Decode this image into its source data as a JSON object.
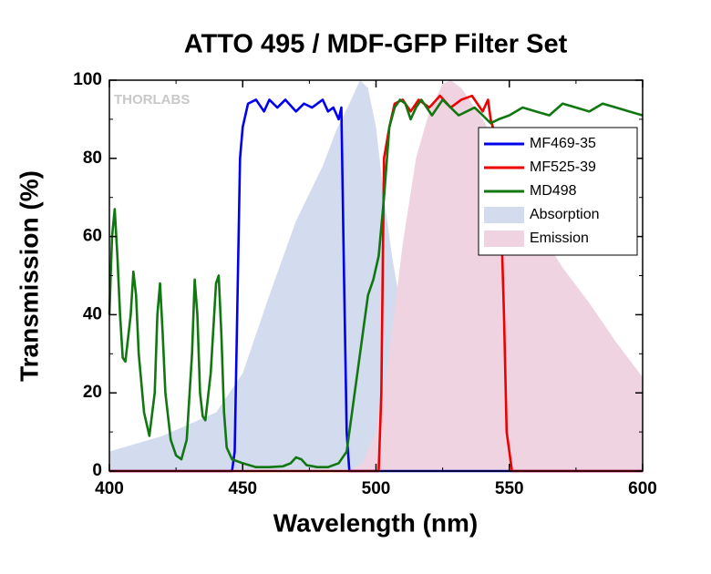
{
  "chart_data": {
    "type": "line",
    "title": "ATTO 495 / MDF-GFP Filter Set",
    "xlabel": "Wavelength (nm)",
    "ylabel": "Transmission (%)",
    "watermark": "THORLABS",
    "xlim": [
      400,
      600
    ],
    "ylim": [
      0,
      100
    ],
    "xticks": [
      400,
      450,
      500,
      550,
      600
    ],
    "yticks": [
      0,
      20,
      40,
      60,
      80,
      100
    ],
    "legend": "upper right",
    "series": [
      {
        "name": "MF469-35",
        "color": "#0000ee",
        "kind": "line",
        "x": [
          400,
          446,
          447,
          449,
          450,
          452,
          455,
          458,
          460,
          463,
          466,
          470,
          473,
          476,
          480,
          482,
          484,
          486,
          487,
          488,
          489,
          490,
          600
        ],
        "values": [
          0,
          0,
          5,
          80,
          88,
          94,
          95,
          92,
          95,
          93,
          95,
          92,
          94,
          93,
          95,
          92,
          93,
          90,
          93,
          50,
          10,
          0,
          0
        ]
      },
      {
        "name": "MF525-39",
        "color": "#ee0000",
        "kind": "line",
        "x": [
          400,
          501,
          502,
          503,
          505,
          507,
          510,
          513,
          516,
          520,
          524,
          528,
          532,
          536,
          540,
          542,
          543,
          545,
          546,
          547,
          548,
          549,
          551,
          600
        ],
        "values": [
          0,
          0,
          20,
          80,
          88,
          94,
          95,
          92,
          95,
          93,
          96,
          93,
          95,
          96,
          92,
          95,
          90,
          85,
          75,
          63,
          40,
          10,
          0,
          0
        ]
      },
      {
        "name": "MD498",
        "color": "#117711",
        "kind": "line",
        "x": [
          400,
          401,
          402,
          403,
          404,
          405,
          406,
          408,
          409,
          410,
          411,
          413,
          415,
          417,
          418,
          419,
          420,
          421,
          423,
          425,
          427,
          429,
          431,
          432,
          433,
          434,
          435,
          436,
          438,
          440,
          441,
          442,
          443,
          444,
          446,
          450,
          455,
          460,
          465,
          468,
          470,
          472,
          474,
          478,
          482,
          486,
          489,
          491,
          493,
          495,
          497,
          499,
          501,
          503,
          505,
          507,
          509,
          511,
          513,
          515,
          517,
          519,
          521,
          523,
          525,
          528,
          531,
          534,
          537,
          540,
          543,
          546,
          550,
          555,
          560,
          565,
          570,
          575,
          580,
          585,
          590,
          595,
          600
        ],
        "values": [
          40,
          60,
          67,
          55,
          40,
          29,
          28,
          40,
          51,
          45,
          30,
          15,
          9,
          20,
          40,
          48,
          35,
          20,
          8,
          4,
          3,
          8,
          30,
          49,
          40,
          20,
          14,
          13,
          25,
          48,
          50,
          35,
          15,
          6,
          3,
          2,
          1,
          1,
          1.2,
          2,
          3.5,
          3,
          1.5,
          1,
          1,
          2,
          5,
          15,
          25,
          35,
          45,
          49,
          55,
          70,
          88,
          93,
          95,
          94,
          90,
          93,
          95,
          93,
          91,
          93,
          95,
          93,
          91,
          92,
          93,
          91,
          89,
          90,
          91,
          93,
          92,
          91,
          94,
          93,
          92,
          94,
          93,
          92,
          91
        ]
      },
      {
        "name": "Absorption",
        "color": "#d3dcef",
        "kind": "area",
        "x": [
          400,
          420,
          440,
          450,
          460,
          470,
          475,
          480,
          485,
          490,
          494,
          497,
          500,
          503,
          506,
          509,
          512,
          515,
          520,
          530,
          540,
          550,
          600
        ],
        "values": [
          5,
          9,
          15,
          25,
          45,
          64,
          71,
          78,
          87,
          94,
          100,
          98,
          88,
          70,
          55,
          43,
          30,
          18,
          8,
          3,
          1,
          0,
          0
        ]
      },
      {
        "name": "Emission",
        "color": "#f0d3e0",
        "kind": "area",
        "x": [
          490,
          495,
          500,
          505,
          510,
          515,
          520,
          525,
          528,
          532,
          540,
          550,
          560,
          570,
          580,
          590,
          600
        ],
        "values": [
          0,
          2,
          10,
          30,
          58,
          80,
          92,
          99,
          100,
          98,
          90,
          77,
          63,
          52,
          43,
          33,
          24
        ]
      }
    ]
  }
}
